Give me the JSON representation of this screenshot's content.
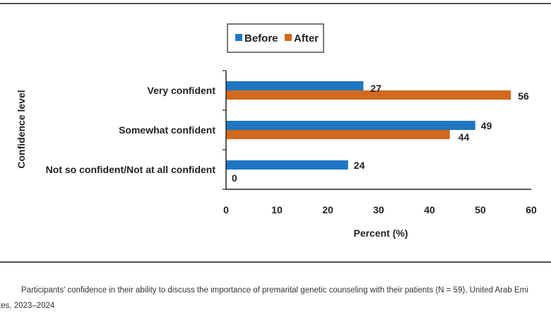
{
  "chart_data": {
    "type": "bar",
    "orientation": "horizontal",
    "categories": [
      "Very confident",
      "Somewhat confident",
      "Not so confident/Not at all confident"
    ],
    "series": [
      {
        "name": "Before",
        "values": [
          27,
          49,
          24
        ],
        "color": "#1f77c4"
      },
      {
        "name": "After",
        "values": [
          56,
          44,
          0
        ],
        "color": "#d2691e"
      }
    ],
    "title": "",
    "xlabel": "Percent (%)",
    "ylabel": "Confidence level",
    "xlim": [
      0,
      60
    ],
    "xticks": [
      0,
      10,
      20,
      30,
      40,
      50,
      60
    ],
    "legend_position": "top",
    "grid": false
  },
  "caption": {
    "line1": "Participants' confidence in their ability to discuss the importance of premarital genetic counseling with their patients (N = 59), United Arab Emi",
    "line2": "tes, 2023–2024"
  }
}
